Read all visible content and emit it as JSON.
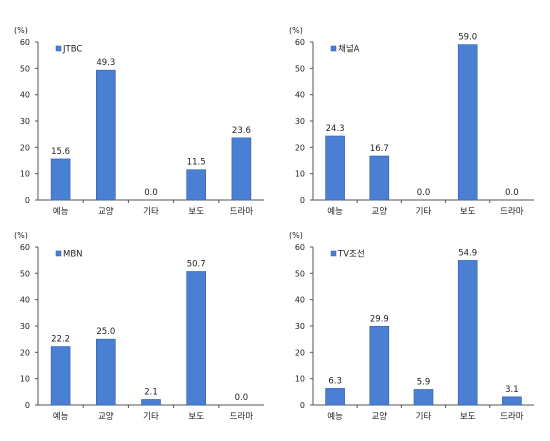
{
  "colors": {
    "bar": "#4a7fd4",
    "bar_edge": "#2f5fae",
    "axis": "#555555",
    "text": "#222222"
  },
  "chart_data": [
    {
      "type": "bar",
      "legend": "JTBC",
      "ylabel": "(%)",
      "categories": [
        "예능",
        "교양",
        "기타",
        "보도",
        "드라마"
      ],
      "values": [
        15.6,
        49.3,
        0.0,
        11.5,
        23.6
      ],
      "value_labels": [
        "15.6",
        "49.3",
        "0.0",
        "11.5",
        "23.6"
      ],
      "ylim": [
        0,
        60
      ],
      "yticks": [
        "0",
        "10",
        "20",
        "30",
        "40",
        "50",
        "60"
      ],
      "grid": false,
      "legend_position": "top-left"
    },
    {
      "type": "bar",
      "legend": "채널A",
      "ylabel": "(%)",
      "categories": [
        "예능",
        "교양",
        "기타",
        "보도",
        "드라마"
      ],
      "values": [
        24.3,
        16.7,
        0.0,
        59.0,
        0.0
      ],
      "value_labels": [
        "24.3",
        "16.7",
        "0.0",
        "59.0",
        "0.0"
      ],
      "ylim": [
        0,
        60
      ],
      "yticks": [
        "0",
        "10",
        "20",
        "30",
        "40",
        "50",
        "60"
      ],
      "grid": false,
      "legend_position": "top-left"
    },
    {
      "type": "bar",
      "legend": "MBN",
      "ylabel": "(%)",
      "categories": [
        "예능",
        "교양",
        "기타",
        "보도",
        "드라마"
      ],
      "values": [
        22.2,
        25.0,
        2.1,
        50.7,
        0.0
      ],
      "value_labels": [
        "22.2",
        "25.0",
        "2.1",
        "50.7",
        "0.0"
      ],
      "ylim": [
        0,
        60
      ],
      "yticks": [
        "0",
        "10",
        "20",
        "30",
        "40",
        "50",
        "60"
      ],
      "grid": false,
      "legend_position": "top-left"
    },
    {
      "type": "bar",
      "legend": "TV조선",
      "ylabel": "(%)",
      "categories": [
        "예능",
        "교양",
        "기타",
        "보도",
        "드라마"
      ],
      "values": [
        6.3,
        29.9,
        5.9,
        54.9,
        3.1
      ],
      "value_labels": [
        "6.3",
        "29.9",
        "5.9",
        "54.9",
        "3.1"
      ],
      "ylim": [
        0,
        60
      ],
      "yticks": [
        "0",
        "10",
        "20",
        "30",
        "40",
        "50",
        "60"
      ],
      "grid": false,
      "legend_position": "top-left"
    }
  ]
}
